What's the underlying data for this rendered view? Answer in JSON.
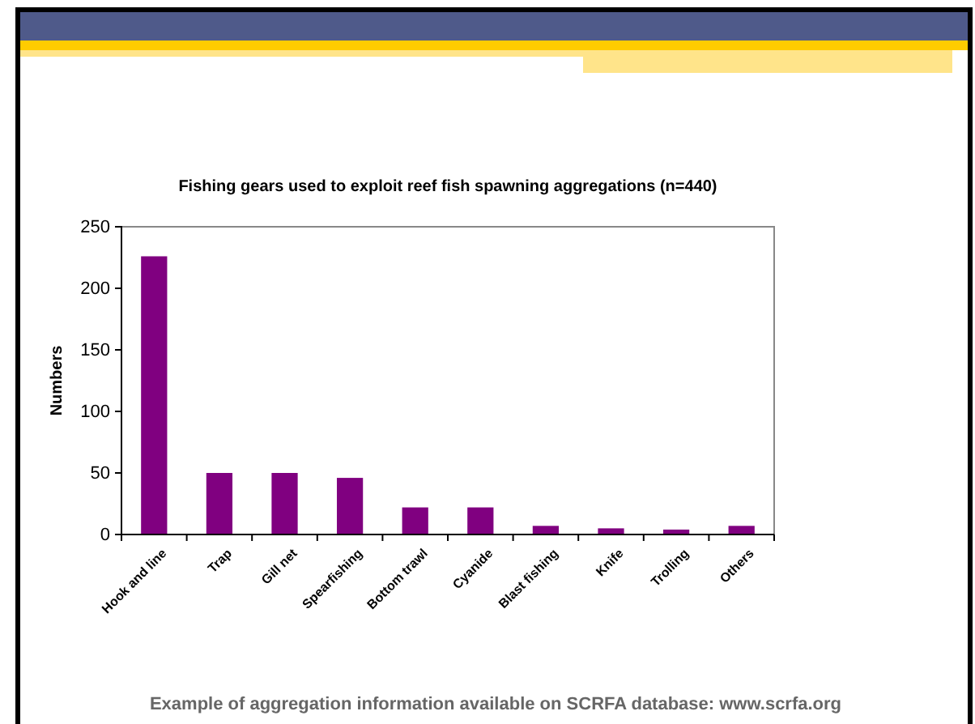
{
  "chart_data": {
    "type": "bar",
    "title": "Fishing gears used to exploit reef fish spawning aggregations (n=440)",
    "ylabel": "Numbers",
    "categories": [
      "Hook and line",
      "Trap",
      "Gill net",
      "Spearfishing",
      "Bottom trawl",
      "Cyanide",
      "Blast fishing",
      "Knife",
      "Trolling",
      "Others"
    ],
    "values": [
      226,
      50,
      50,
      46,
      22,
      22,
      7,
      5,
      4,
      7
    ],
    "color": "#800080",
    "ylim": [
      0,
      250
    ],
    "yticks": [
      0,
      50,
      100,
      150,
      200,
      250
    ],
    "grid": false,
    "annotations": [
      "Example of aggregation information available on SCRFA database: www.scrfa.org"
    ]
  }
}
